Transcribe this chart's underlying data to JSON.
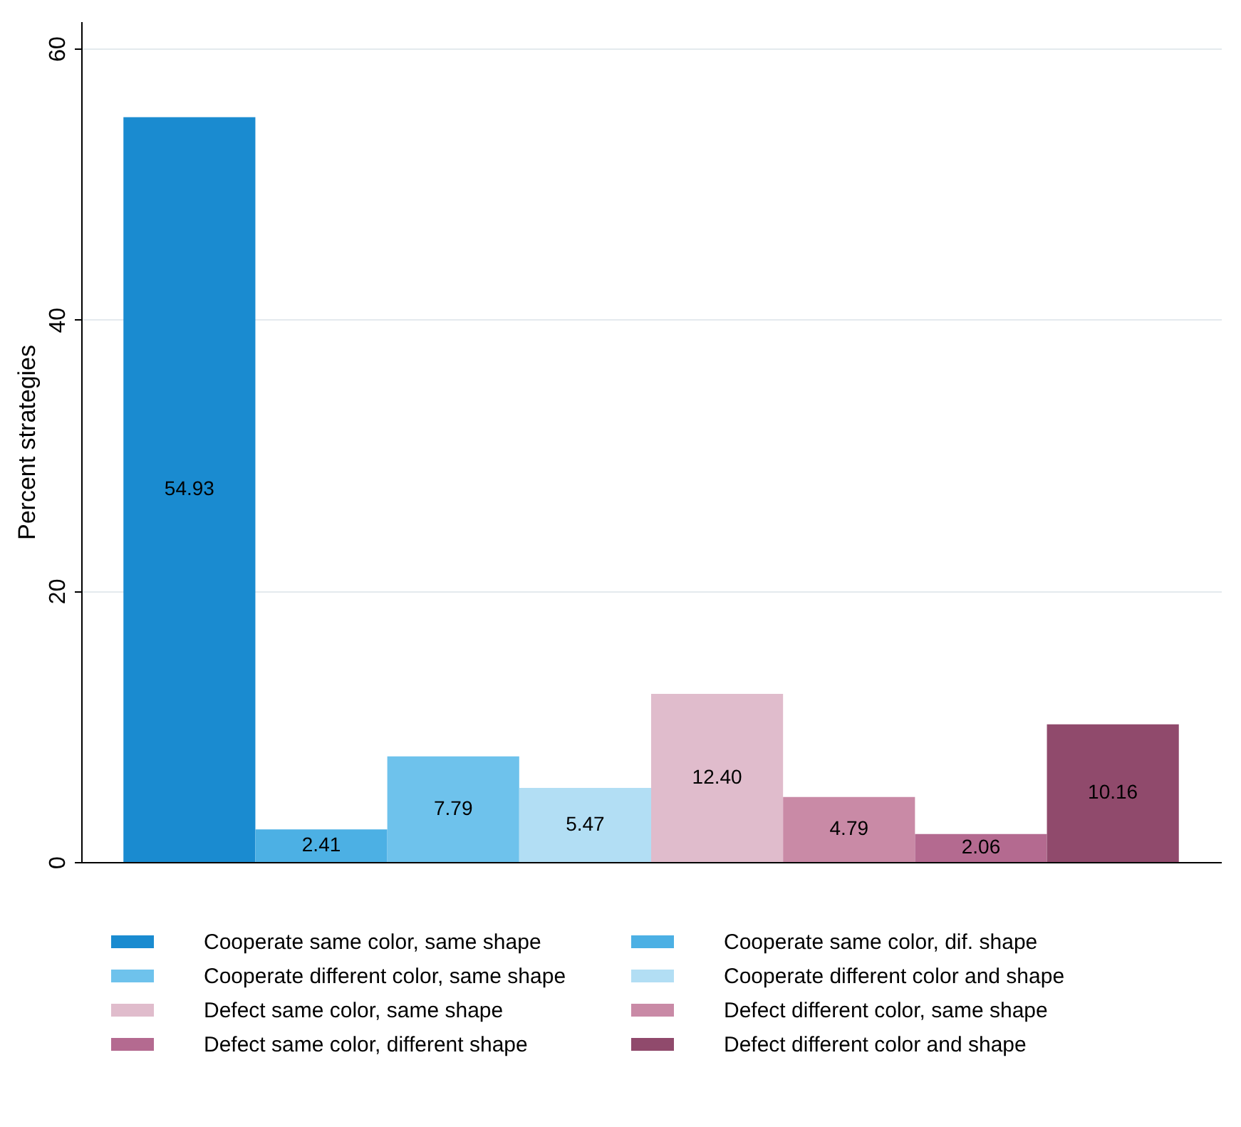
{
  "chart_data": {
    "type": "bar",
    "ylabel": "Percent strategies",
    "categories": [
      null
    ],
    "ylim": [
      0,
      62
    ],
    "yticks": [
      0,
      20,
      40,
      60
    ],
    "grid": "y",
    "legend": "bottom",
    "tick_labels": "y",
    "series": [
      {
        "name": "Cooperate same color, same shape",
        "color": "#1a8bd0",
        "values": [
          54.93
        ],
        "value_labels": [
          "54.93"
        ]
      },
      {
        "name": "Cooperate same color, dif. shape",
        "color": "#4cb0e4",
        "values": [
          2.41
        ],
        "value_labels": [
          "2.41"
        ]
      },
      {
        "name": "Cooperate different color, same shape",
        "color": "#6ec2ec",
        "values": [
          7.79
        ],
        "value_labels": [
          "7.79"
        ]
      },
      {
        "name": "Cooperate different color and shape",
        "color": "#b2def4",
        "values": [
          5.47
        ],
        "value_labels": [
          "5.47"
        ]
      },
      {
        "name": "Defect same color, same shape",
        "color": "#e0bccc",
        "values": [
          12.4
        ],
        "value_labels": [
          "12.40"
        ]
      },
      {
        "name": "Defect different color, same shape",
        "color": "#c98aa6",
        "values": [
          4.79
        ],
        "value_labels": [
          "4.79"
        ]
      },
      {
        "name": "Defect same color, different shape",
        "color": "#b46a90",
        "values": [
          2.06
        ],
        "value_labels": [
          "2.06"
        ]
      },
      {
        "name": "Defect different color and shape",
        "color": "#904a6c",
        "values": [
          10.16
        ],
        "value_labels": [
          "10.16"
        ]
      }
    ]
  }
}
